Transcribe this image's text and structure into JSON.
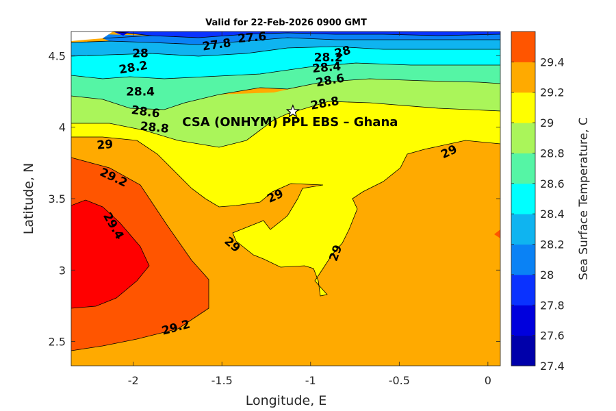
{
  "chart_data": {
    "type": "contour",
    "title": "Valid for 22-Feb-2026 0900 GMT",
    "xlabel": "Longitude, E",
    "ylabel": "Latitude, N",
    "xlim": [
      -2.35,
      0.07
    ],
    "ylim": [
      2.33,
      4.67
    ],
    "xticks": [
      -2,
      -1.5,
      -1,
      -0.5,
      0
    ],
    "xtick_labels": [
      "-2",
      "-1.5",
      "-1",
      "-0.5",
      "0"
    ],
    "yticks": [
      2.5,
      3,
      3.5,
      4,
      4.5
    ],
    "ytick_labels": [
      "2.5",
      "3",
      "3.5",
      "4",
      "4.5"
    ],
    "colorbar": {
      "label": "Sea Surface Temperature, C",
      "range": [
        27.4,
        29.6
      ],
      "levels": [
        27.4,
        27.6,
        27.8,
        28.0,
        28.2,
        28.4,
        28.6,
        28.8,
        29.0,
        29.2,
        29.4,
        29.6
      ],
      "colors": [
        "#0000aa",
        "#0000dd",
        "#0a32ff",
        "#0a82f5",
        "#0fb4f0",
        "#00ffff",
        "#55f5a5",
        "#aaf55a",
        "#ffff00",
        "#ffaa00",
        "#ff5500",
        "#ff0000"
      ],
      "tick_values": [
        27.4,
        27.6,
        27.8,
        28.0,
        28.2,
        28.4,
        28.6,
        28.8,
        29.0,
        29.2,
        29.4
      ],
      "tick_labels": [
        "27.4",
        "27.6",
        "27.8",
        "28",
        "28.2",
        "28.4",
        "28.6",
        "28.8",
        "29",
        "29.2",
        "29.4"
      ]
    },
    "contour_labels": [
      {
        "text": "27.6",
        "lon": -1.33,
        "lat": 4.63,
        "angle": -5
      },
      {
        "text": "27.8",
        "lon": -1.53,
        "lat": 4.58,
        "angle": -8
      },
      {
        "text": "28",
        "lon": -1.96,
        "lat": 4.52,
        "angle": 0
      },
      {
        "text": "28.2",
        "lon": -2.0,
        "lat": 4.42,
        "angle": -10
      },
      {
        "text": "28.2",
        "lon": -0.9,
        "lat": 4.49,
        "angle": 0
      },
      {
        "text": "28",
        "lon": -0.82,
        "lat": 4.53,
        "angle": -15
      },
      {
        "text": "28.4",
        "lon": -1.96,
        "lat": 4.25,
        "angle": 0
      },
      {
        "text": "28.4",
        "lon": -0.91,
        "lat": 4.42,
        "angle": -5
      },
      {
        "text": "28.6",
        "lon": -1.93,
        "lat": 4.11,
        "angle": 8
      },
      {
        "text": "28.6",
        "lon": -0.89,
        "lat": 4.33,
        "angle": -10
      },
      {
        "text": "28.8",
        "lon": -1.88,
        "lat": 4.0,
        "angle": 6
      },
      {
        "text": "28.8",
        "lon": -0.92,
        "lat": 4.17,
        "angle": -10
      },
      {
        "text": "29",
        "lon": -2.16,
        "lat": 3.88,
        "angle": -5
      },
      {
        "text": "29",
        "lon": -0.22,
        "lat": 3.83,
        "angle": -25
      },
      {
        "text": "29",
        "lon": -1.2,
        "lat": 3.52,
        "angle": -25
      },
      {
        "text": "29",
        "lon": -1.44,
        "lat": 3.18,
        "angle": 40
      },
      {
        "text": "29",
        "lon": -0.86,
        "lat": 3.12,
        "angle": -70
      },
      {
        "text": "29.2",
        "lon": -2.11,
        "lat": 3.65,
        "angle": 25
      },
      {
        "text": "29.2",
        "lon": -1.76,
        "lat": 2.6,
        "angle": -15
      },
      {
        "text": "29.4",
        "lon": -2.11,
        "lat": 3.31,
        "angle": 60
      }
    ],
    "site": {
      "label": "CSA (ONHYM) PPL EBS  – Ghana",
      "lon": -1.1,
      "lat": 4.11
    }
  }
}
